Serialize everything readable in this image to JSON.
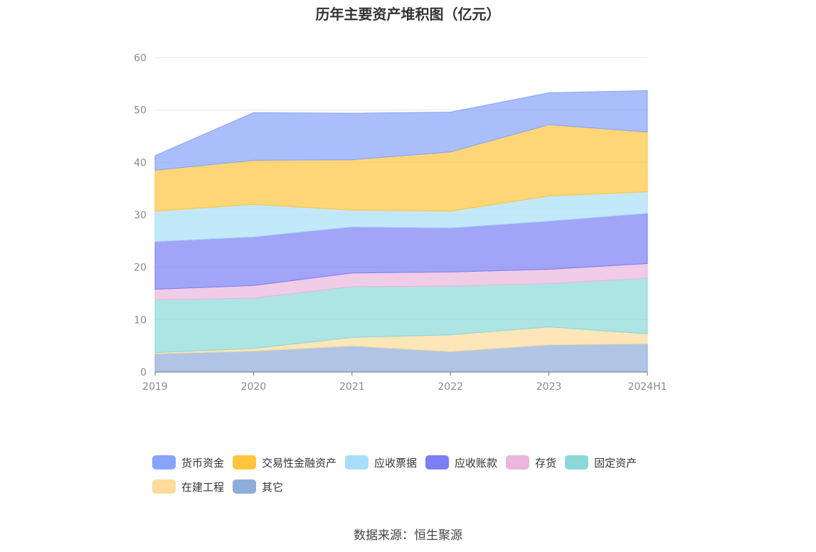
{
  "source": "数据来源：恒生聚源",
  "chart_data": {
    "type": "area",
    "stacked": true,
    "title": "历年主要资产堆积图（亿元）",
    "categories": [
      "2019",
      "2020",
      "2021",
      "2022",
      "2023",
      "2024H1"
    ],
    "ylim": [
      0,
      60
    ],
    "yticks": [
      0,
      10,
      20,
      30,
      40,
      50,
      60
    ],
    "grid": true,
    "legend_position": "bottom",
    "series": [
      {
        "name": "其它",
        "color": "#8eaddb",
        "values": [
          3.5,
          4.0,
          5.0,
          3.9,
          5.2,
          5.4
        ]
      },
      {
        "name": "在建工程",
        "color": "#ffdc9b",
        "values": [
          0.2,
          0.5,
          1.6,
          3.2,
          3.4,
          1.9
        ]
      },
      {
        "name": "固定资产",
        "color": "#8ad8d8",
        "values": [
          10.1,
          9.6,
          9.7,
          9.3,
          8.3,
          10.6
        ]
      },
      {
        "name": "存货",
        "color": "#eab6dc",
        "values": [
          2.0,
          2.4,
          2.6,
          2.7,
          2.7,
          2.8
        ]
      },
      {
        "name": "应收账款",
        "color": "#7b7ef5",
        "values": [
          9.1,
          9.3,
          8.8,
          8.4,
          9.2,
          9.6
        ]
      },
      {
        "name": "应收票据",
        "color": "#a8dff8",
        "values": [
          5.8,
          6.2,
          3.2,
          3.2,
          4.8,
          4.1
        ]
      },
      {
        "name": "交易性金融资产",
        "color": "#ffc53d",
        "values": [
          7.8,
          8.4,
          9.6,
          11.3,
          13.6,
          11.4
        ]
      },
      {
        "name": "货币资金",
        "color": "#87a3fb",
        "values": [
          2.8,
          9.1,
          8.9,
          7.6,
          6.1,
          7.9
        ]
      }
    ],
    "legend_order": [
      "货币资金",
      "交易性金融资产",
      "应收票据",
      "应收账款",
      "存货",
      "固定资产",
      "在建工程",
      "其它"
    ]
  }
}
